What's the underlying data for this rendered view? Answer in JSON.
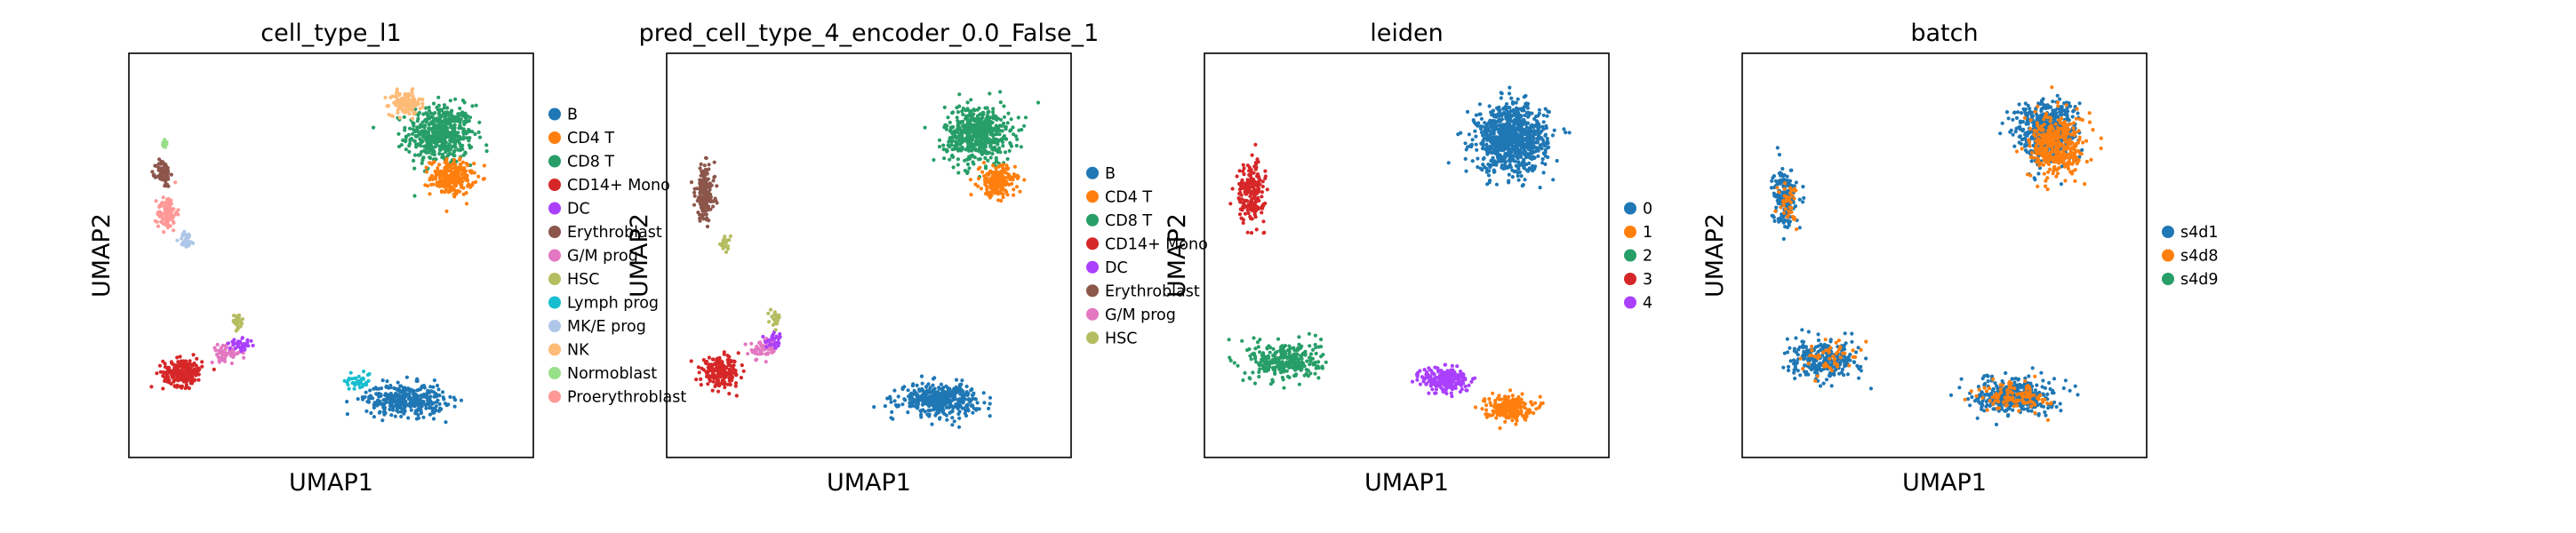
{
  "chart_data": [
    {
      "type": "scatter",
      "title": "cell_type_l1",
      "xlabel": "UMAP1",
      "ylabel": "UMAP2",
      "legend_placement": "right-outside",
      "grid": false,
      "ticks": false,
      "categories": [
        "B",
        "CD4 T",
        "CD8 T",
        "CD14+ Mono",
        "DC",
        "Erythroblast",
        "G/M prog",
        "HSC",
        "Lymph prog",
        "MK/E prog",
        "NK",
        "Normoblast",
        "Proerythroblast"
      ],
      "colors": [
        "#1f77b4",
        "#ff7f0e",
        "#279e68",
        "#d62728",
        "#aa40fc",
        "#8c564b",
        "#e377c2",
        "#b5bd61",
        "#17becf",
        "#aec7e8",
        "#ffbb78",
        "#98df8a",
        "#ff9896"
      ],
      "clusters": [
        {
          "category": "CD8 T",
          "cx": 7.8,
          "cy": 8.1,
          "sx": 0.85,
          "sy": 0.75,
          "n": 520
        },
        {
          "category": "CD4 T",
          "cx": 8.1,
          "cy": 7.0,
          "sx": 0.55,
          "sy": 0.45,
          "n": 220
        },
        {
          "category": "NK",
          "cx": 6.9,
          "cy": 8.9,
          "sx": 0.4,
          "sy": 0.3,
          "n": 130
        },
        {
          "category": "Proerythroblast",
          "cx": 0.8,
          "cy": 6.1,
          "sx": 0.25,
          "sy": 0.45,
          "n": 90
        },
        {
          "category": "Erythroblast",
          "cx": 0.7,
          "cy": 7.1,
          "sx": 0.18,
          "sy": 0.35,
          "n": 80
        },
        {
          "category": "Normoblast",
          "cx": 0.75,
          "cy": 7.85,
          "sx": 0.08,
          "sy": 0.12,
          "n": 15
        },
        {
          "category": "MK/E prog",
          "cx": 1.3,
          "cy": 5.4,
          "sx": 0.2,
          "sy": 0.2,
          "n": 30
        },
        {
          "category": "CD14+ Mono",
          "cx": 1.2,
          "cy": 2.0,
          "sx": 0.5,
          "sy": 0.35,
          "n": 210
        },
        {
          "category": "G/M prog",
          "cx": 2.3,
          "cy": 2.5,
          "sx": 0.4,
          "sy": 0.2,
          "n": 60
        },
        {
          "category": "DC",
          "cx": 2.7,
          "cy": 2.7,
          "sx": 0.3,
          "sy": 0.15,
          "n": 40
        },
        {
          "category": "HSC",
          "cx": 2.6,
          "cy": 3.3,
          "sx": 0.15,
          "sy": 0.2,
          "n": 30
        },
        {
          "category": "Lymph prog",
          "cx": 5.7,
          "cy": 1.8,
          "sx": 0.35,
          "sy": 0.25,
          "n": 40
        },
        {
          "category": "B",
          "cx": 6.9,
          "cy": 1.3,
          "sx": 1.0,
          "sy": 0.4,
          "n": 360
        }
      ]
    },
    {
      "type": "scatter",
      "title": "pred_cell_type_4_encoder_0.0_False_1",
      "xlabel": "UMAP1",
      "ylabel": "UMAP2",
      "legend_placement": "right-outside",
      "grid": false,
      "ticks": false,
      "categories": [
        "B",
        "CD4 T",
        "CD8 T",
        "CD14+ Mono",
        "DC",
        "Erythroblast",
        "G/M prog",
        "HSC"
      ],
      "colors": [
        "#1f77b4",
        "#ff7f0e",
        "#279e68",
        "#d62728",
        "#aa40fc",
        "#8c564b",
        "#e377c2",
        "#b5bd61"
      ],
      "clusters": [
        {
          "category": "CD8 T",
          "cx": 7.8,
          "cy": 8.1,
          "sx": 0.85,
          "sy": 0.75,
          "n": 560
        },
        {
          "category": "CD4 T",
          "cx": 8.3,
          "cy": 6.9,
          "sx": 0.45,
          "sy": 0.4,
          "n": 200
        },
        {
          "category": "Erythroblast",
          "cx": 0.8,
          "cy": 6.6,
          "sx": 0.25,
          "sy": 0.7,
          "n": 180
        },
        {
          "category": "HSC",
          "cx": 1.3,
          "cy": 5.3,
          "sx": 0.15,
          "sy": 0.2,
          "n": 25
        },
        {
          "category": "CD14+ Mono",
          "cx": 1.2,
          "cy": 2.0,
          "sx": 0.5,
          "sy": 0.35,
          "n": 210
        },
        {
          "category": "G/M prog",
          "cx": 2.3,
          "cy": 2.6,
          "sx": 0.35,
          "sy": 0.25,
          "n": 60
        },
        {
          "category": "DC",
          "cx": 2.6,
          "cy": 2.8,
          "sx": 0.25,
          "sy": 0.2,
          "n": 30
        },
        {
          "category": "HSC",
          "cx": 2.6,
          "cy": 3.4,
          "sx": 0.12,
          "sy": 0.18,
          "n": 25
        },
        {
          "category": "B",
          "cx": 6.8,
          "cy": 1.3,
          "sx": 1.0,
          "sy": 0.4,
          "n": 400
        }
      ]
    },
    {
      "type": "scatter",
      "title": "leiden",
      "xlabel": "UMAP1",
      "ylabel": "UMAP2",
      "legend_placement": "right-outside",
      "grid": false,
      "ticks": false,
      "categories": [
        "0",
        "1",
        "2",
        "3",
        "4"
      ],
      "colors": [
        "#1f77b4",
        "#ff7f0e",
        "#279e68",
        "#d62728",
        "#aa40fc"
      ],
      "clusters": [
        {
          "category": "0",
          "cx": 7.7,
          "cy": 8.0,
          "sx": 0.9,
          "sy": 0.85,
          "n": 900
        },
        {
          "category": "3",
          "cx": 1.0,
          "cy": 6.6,
          "sx": 0.35,
          "sy": 0.75,
          "n": 200
        },
        {
          "category": "2",
          "cx": 1.9,
          "cy": 2.3,
          "sx": 0.9,
          "sy": 0.5,
          "n": 300
        },
        {
          "category": "4",
          "cx": 6.0,
          "cy": 1.8,
          "sx": 0.6,
          "sy": 0.35,
          "n": 220
        },
        {
          "category": "1",
          "cx": 7.6,
          "cy": 1.1,
          "sx": 0.6,
          "sy": 0.3,
          "n": 220
        }
      ]
    },
    {
      "type": "scatter",
      "title": "batch",
      "xlabel": "UMAP1",
      "ylabel": "UMAP2",
      "legend_placement": "right-outside",
      "grid": false,
      "ticks": false,
      "categories": [
        "s4d1",
        "s4d8",
        "s4d9"
      ],
      "colors": [
        "#1f77b4",
        "#ff7f0e",
        "#279e68"
      ],
      "clusters": [
        {
          "category": "s4d1",
          "cx": 7.6,
          "cy": 8.2,
          "sx": 0.8,
          "sy": 0.8,
          "n": 500
        },
        {
          "category": "s4d8",
          "cx": 7.9,
          "cy": 7.8,
          "sx": 0.7,
          "sy": 0.8,
          "n": 400
        },
        {
          "category": "s4d1",
          "cx": 0.9,
          "cy": 6.5,
          "sx": 0.3,
          "sy": 0.75,
          "n": 170
        },
        {
          "category": "s4d8",
          "cx": 1.0,
          "cy": 6.4,
          "sx": 0.25,
          "sy": 0.6,
          "n": 40
        },
        {
          "category": "s4d1",
          "cx": 1.9,
          "cy": 2.3,
          "sx": 0.9,
          "sy": 0.5,
          "n": 260
        },
        {
          "category": "s4d8",
          "cx": 2.0,
          "cy": 2.4,
          "sx": 0.7,
          "sy": 0.4,
          "n": 50
        },
        {
          "category": "s4d1",
          "cx": 6.8,
          "cy": 1.4,
          "sx": 1.0,
          "sy": 0.45,
          "n": 360
        },
        {
          "category": "s4d8",
          "cx": 6.8,
          "cy": 1.4,
          "sx": 0.9,
          "sy": 0.4,
          "n": 110
        }
      ]
    }
  ]
}
